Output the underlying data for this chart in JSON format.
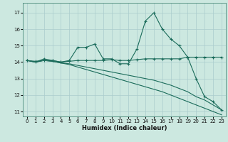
{
  "xlabel": "Humidex (Indice chaleur)",
  "background_color": "#cce8e0",
  "grid_color": "#aacccc",
  "line_color": "#1a6b5a",
  "xlim": [
    -0.5,
    23.5
  ],
  "ylim": [
    10.7,
    17.6
  ],
  "yticks": [
    11,
    12,
    13,
    14,
    15,
    16,
    17
  ],
  "xticks": [
    0,
    1,
    2,
    3,
    4,
    5,
    6,
    7,
    8,
    9,
    10,
    11,
    12,
    13,
    14,
    15,
    16,
    17,
    18,
    19,
    20,
    21,
    22,
    23
  ],
  "series1_x": [
    0,
    1,
    2,
    3,
    4,
    5,
    6,
    7,
    8,
    9,
    10,
    11,
    12,
    13,
    14,
    15,
    16,
    17,
    18,
    19,
    20,
    21,
    22,
    23
  ],
  "series1_y": [
    14.1,
    14.0,
    14.2,
    14.1,
    14.0,
    14.1,
    14.9,
    14.9,
    15.1,
    14.2,
    14.2,
    13.9,
    13.9,
    14.8,
    16.5,
    17.0,
    16.0,
    15.4,
    15.0,
    14.3,
    13.0,
    11.9,
    11.6,
    11.1
  ],
  "series2_x": [
    0,
    1,
    2,
    3,
    4,
    5,
    6,
    7,
    8,
    9,
    10,
    11,
    12,
    13,
    14,
    15,
    16,
    17,
    18,
    19,
    20,
    21,
    22,
    23
  ],
  "series2_y": [
    14.1,
    14.05,
    14.1,
    14.1,
    14.0,
    14.05,
    14.1,
    14.1,
    14.1,
    14.1,
    14.15,
    14.1,
    14.1,
    14.15,
    14.2,
    14.2,
    14.2,
    14.2,
    14.2,
    14.3,
    14.3,
    14.3,
    14.3,
    14.3
  ],
  "series3_x": [
    0,
    1,
    2,
    3,
    4,
    5,
    6,
    7,
    8,
    9,
    10,
    11,
    12,
    13,
    14,
    15,
    16,
    17,
    18,
    19,
    20,
    21,
    22,
    23
  ],
  "series3_y": [
    14.1,
    14.0,
    14.1,
    14.05,
    13.95,
    13.9,
    13.8,
    13.7,
    13.6,
    13.5,
    13.4,
    13.3,
    13.2,
    13.1,
    13.0,
    12.9,
    12.75,
    12.6,
    12.4,
    12.2,
    11.9,
    11.7,
    11.4,
    11.1
  ],
  "series4_x": [
    0,
    1,
    2,
    3,
    4,
    5,
    6,
    7,
    8,
    9,
    10,
    11,
    12,
    13,
    14,
    15,
    16,
    17,
    18,
    19,
    20,
    21,
    22,
    23
  ],
  "series4_y": [
    14.1,
    14.0,
    14.1,
    14.05,
    13.95,
    13.85,
    13.7,
    13.55,
    13.4,
    13.25,
    13.1,
    12.95,
    12.8,
    12.65,
    12.5,
    12.35,
    12.2,
    12.0,
    11.8,
    11.6,
    11.4,
    11.2,
    11.0,
    10.8
  ]
}
